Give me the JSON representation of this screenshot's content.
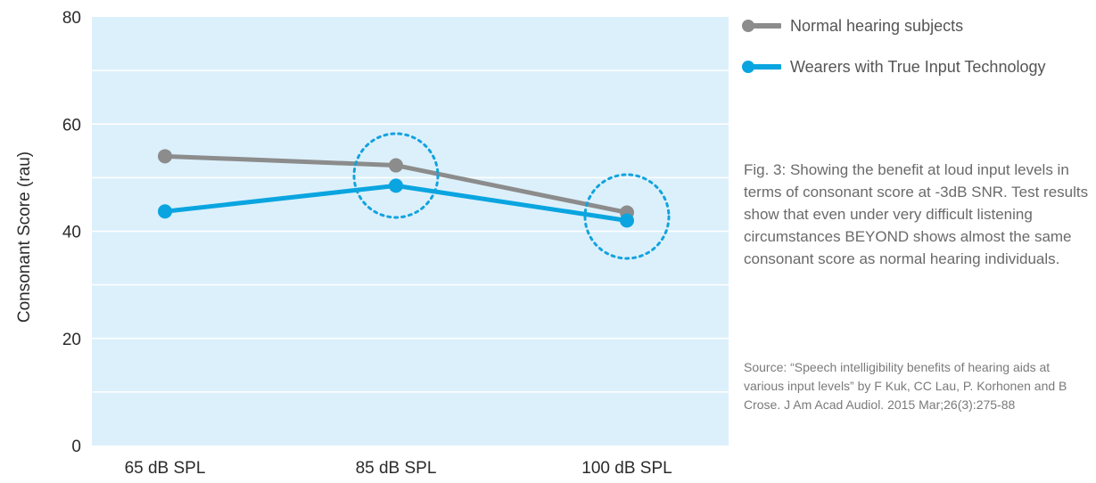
{
  "chart_data": {
    "type": "line",
    "categories": [
      "65 dB SPL",
      "85 dB SPL",
      "100 dB SPL"
    ],
    "series": [
      {
        "name": "Normal hearing subjects",
        "values": [
          54,
          52.3,
          43.5
        ],
        "color": "#8c8c8c"
      },
      {
        "name": "Wearers with True Input Technology",
        "values": [
          43.7,
          48.5,
          42
        ],
        "color": "#0aa5e0"
      }
    ],
    "ylabel": "Consonant Score (rau)",
    "xlabel": "",
    "ylim": [
      0,
      80
    ],
    "yticks": [
      0,
      20,
      40,
      60,
      80
    ],
    "grid": true,
    "background_color": "#dcf0fb",
    "legend_position": "right",
    "highlighted_categories": [
      "85 dB SPL",
      "100 dB SPL"
    ]
  },
  "caption": "Fig. 3: Showing the benefit at loud input levels in terms of consonant score at -3dB SNR. Test results show that even under very difficult listening circumstances BEYOND shows almost the same consonant score as normal hearing individuals.",
  "source": "Source: “Speech intelligibility benefits of hearing aids at various input levels” by F Kuk, CC Lau, P. Korhonen and B Crose. J Am Acad Audiol. 2015 Mar;26(3):275-88"
}
